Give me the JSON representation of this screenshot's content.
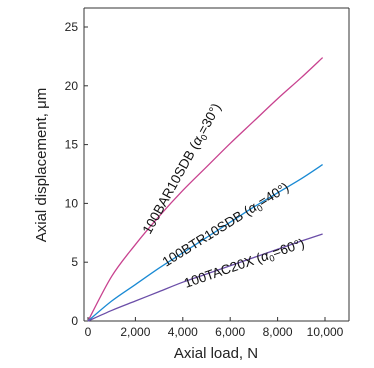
{
  "chart_data": {
    "type": "line",
    "xlabel": "Axial load, N",
    "ylabel": "Axial displacement, μm",
    "xlim": [
      0,
      12000
    ],
    "ylim": [
      0,
      25
    ],
    "x_ticks": [
      0,
      2000,
      4000,
      6000,
      8000,
      10000
    ],
    "x_tick_labels": [
      "0",
      "2,000",
      "4,000",
      "6,000",
      "8,000",
      "10,000"
    ],
    "y_ticks": [
      0,
      5,
      10,
      15,
      20,
      25
    ],
    "y_tick_labels": [
      "0",
      "5",
      "10",
      "15",
      "20",
      "25"
    ],
    "grid": false,
    "series": [
      {
        "name": "100BAR10SDB (α0=30°)",
        "color": "#c8428f",
        "x": [
          0,
          1000,
          2000,
          3000,
          4000,
          5000,
          6000,
          7000,
          8000,
          9000,
          9900
        ],
        "y": [
          0,
          3.8,
          6.5,
          8.9,
          11.1,
          13.1,
          15.1,
          17.0,
          18.9,
          20.7,
          22.4
        ]
      },
      {
        "name": "100BTR10SDB (α0=40°)",
        "color": "#1a8ad4",
        "x": [
          0,
          1000,
          2000,
          3000,
          4000,
          5000,
          6000,
          7000,
          8000,
          9000,
          9900
        ],
        "y": [
          0,
          1.7,
          3.1,
          4.5,
          5.8,
          7.1,
          8.4,
          9.7,
          10.9,
          12.1,
          13.3
        ]
      },
      {
        "name": "100TAC20X (α0=60°)",
        "color": "#6b4ea8",
        "x": [
          0,
          1000,
          2000,
          3000,
          4000,
          5000,
          6000,
          7000,
          8000,
          9000,
          9900
        ],
        "y": [
          0,
          0.9,
          1.7,
          2.5,
          3.3,
          4.0,
          4.7,
          5.4,
          6.1,
          6.8,
          7.4
        ]
      }
    ],
    "labels": [
      {
        "prefix": "100BAR10SDB (",
        "alpha": "α",
        "sub": "0",
        "suffix": "=30°)"
      },
      {
        "prefix": "100BTR10SDB (",
        "alpha": "α",
        "sub": "0",
        "suffix": "=40°)"
      },
      {
        "prefix": "100TAC20X (",
        "alpha": "α",
        "sub": "0",
        "suffix": "=60°)"
      }
    ]
  }
}
